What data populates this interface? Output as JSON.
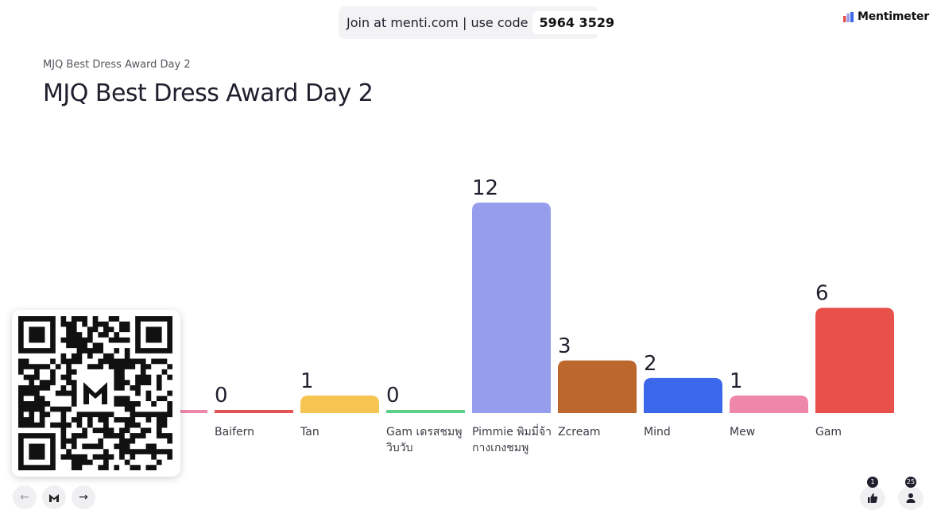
{
  "header": {
    "join_text": "Join at menti.com | use code",
    "join_code": "5964 3529",
    "brand_name": "Mentimeter"
  },
  "slide": {
    "subtitle": "MJQ Best Dress Award Day 2",
    "title": "MJQ Best Dress Award Day 2"
  },
  "chart_data": {
    "type": "bar",
    "title": "MJQ Best Dress Award Day 2",
    "categories": [
      "Baifern",
      "Tan",
      "Gam เดรสชมพูวิบวับ",
      "Pimmie พิมมี่จ้ากางเกงชมพู",
      "Zcream",
      "Mind",
      "Mew",
      "Gam"
    ],
    "category_lines": [
      [
        "Baifern"
      ],
      [
        "Tan"
      ],
      [
        "Gam เดรสชมพู",
        "วิบวับ"
      ],
      [
        "Pimmie พิมมี่จ้า",
        "กางเกงชมพู"
      ],
      [
        "Zcream"
      ],
      [
        "Mind"
      ],
      [
        "Mew"
      ],
      [
        "Gam"
      ]
    ],
    "values": [
      0,
      1,
      0,
      12,
      3,
      2,
      1,
      6
    ],
    "colors": [
      "#e25353",
      "#f5c451",
      "#5ccf8c",
      "#969ded",
      "#bc672b",
      "#3b67ea",
      "#ee87aa",
      "#e8504a"
    ],
    "partially_hidden_bar_color": "#ee87aa",
    "ylim": [
      0,
      12
    ]
  },
  "footer": {
    "likes_count": "1",
    "participants_count": "25",
    "prev_icon": "arrow-left-icon",
    "home_icon": "mentimeter-logo-icon",
    "next_icon": "arrow-right-icon"
  }
}
